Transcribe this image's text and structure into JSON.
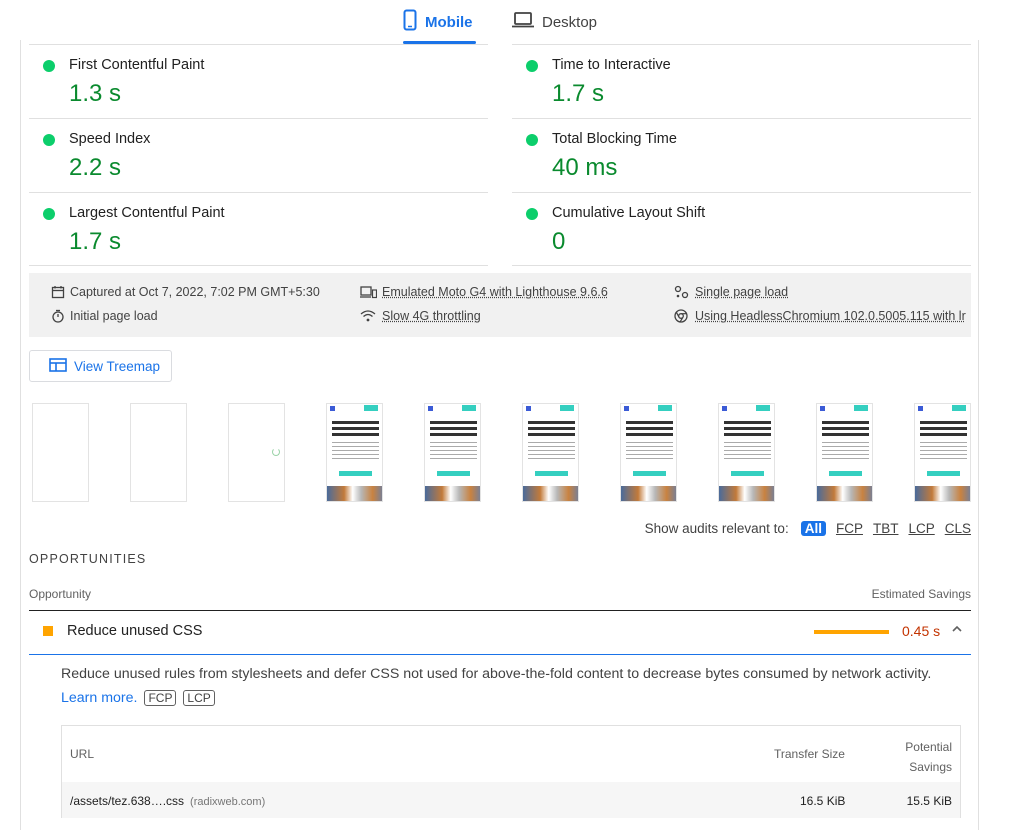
{
  "tabs": {
    "mobile": "Mobile",
    "desktop": "Desktop"
  },
  "metrics": [
    {
      "label": "First Contentful Paint",
      "value": "1.3 s"
    },
    {
      "label": "Time to Interactive",
      "value": "1.7 s"
    },
    {
      "label": "Speed Index",
      "value": "2.2 s"
    },
    {
      "label": "Total Blocking Time",
      "value": "40 ms"
    },
    {
      "label": "Largest Contentful Paint",
      "value": "1.7 s"
    },
    {
      "label": "Cumulative Layout Shift",
      "value": "0"
    }
  ],
  "runtime": {
    "captured": "Captured at Oct 7, 2022, 7:02 PM GMT+5:30",
    "initial_load": "Initial page load",
    "emulated": "Emulated Moto G4 with Lighthouse 9.6.6",
    "throttling": "Slow 4G throttling",
    "single_page": "Single page load",
    "browser": "Using HeadlessChromium 102.0.5005.115 with lr"
  },
  "treemap_button": "View Treemap",
  "filmstrip": {
    "frame_count": 10,
    "thumbnail": {
      "heading_lines": [
        "Software Development",
        "to Help you Scale",
        "Innovation"
      ],
      "button": "Talk About Your Project",
      "nav_cta": "Let's Talk"
    }
  },
  "filter": {
    "label": "Show audits relevant to:",
    "options": [
      "All",
      "FCP",
      "TBT",
      "LCP",
      "CLS"
    ],
    "selected": "All"
  },
  "opportunities": {
    "title": "OPPORTUNITIES",
    "col_opportunity": "Opportunity",
    "col_savings": "Estimated Savings",
    "audit": {
      "label": "Reduce unused CSS",
      "savings": "0.45 s",
      "description": "Reduce unused rules from stylesheets and defer CSS not used for above-the-fold content to decrease bytes consumed by network activity.",
      "learn_more": "Learn more.",
      "tags": [
        "FCP",
        "LCP"
      ],
      "table": {
        "headers": {
          "url": "URL",
          "transfer": "Transfer Size",
          "potential_line1": "Potential",
          "potential_line2": "Savings"
        },
        "rows": [
          {
            "url": "/assets/tez.638….css",
            "host": "(radixweb.com)",
            "transfer": "16.5 KiB",
            "potential": "15.5 KiB"
          }
        ]
      }
    }
  },
  "colors": {
    "accent": "#1a73e8",
    "pass": "#0cce6b",
    "pass_text": "#0a8a2e",
    "average": "#ffa400",
    "fail_text": "#c33300"
  }
}
